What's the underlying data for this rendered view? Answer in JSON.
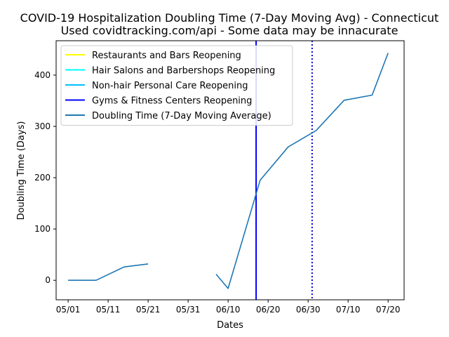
{
  "chart_data": {
    "type": "line",
    "title_line1": "COVID-19 Hospitalization Doubling Time (7-Day Moving Avg) - Connecticut",
    "title_line2": "Used covidtracking.com/api - Some data may be innacurate",
    "xlabel": "Dates",
    "ylabel": "Doubling Time (Days)",
    "x_range": [
      "2020-04-28",
      "2020-07-24"
    ],
    "ylim": [
      -38,
      467
    ],
    "x_ticks": [
      {
        "date": "2020-05-01",
        "label": "05/01"
      },
      {
        "date": "2020-05-11",
        "label": "05/11"
      },
      {
        "date": "2020-05-21",
        "label": "05/21"
      },
      {
        "date": "2020-05-31",
        "label": "05/31"
      },
      {
        "date": "2020-06-10",
        "label": "06/10"
      },
      {
        "date": "2020-06-20",
        "label": "06/20"
      },
      {
        "date": "2020-06-30",
        "label": "06/30"
      },
      {
        "date": "2020-07-10",
        "label": "07/10"
      },
      {
        "date": "2020-07-20",
        "label": "07/20"
      }
    ],
    "y_ticks": [
      0,
      100,
      200,
      300,
      400
    ],
    "grid": false,
    "legend_position": "top-left",
    "reopening_lines": [
      {
        "name": "Restaurants and Bars Reopening",
        "color": "#ffff00",
        "style": "solid",
        "date": null
      },
      {
        "name": "Hair Salons and Barbershops Reopening",
        "color": "#00ffff",
        "style": "solid",
        "date": null
      },
      {
        "name": "Non-hair Personal Care Reopening",
        "color": "#00bfff",
        "style": "solid",
        "date": null
      },
      {
        "name": "Gyms & Fitness Centers Reopening",
        "color": "#0000ff",
        "style": "solid",
        "date": "2020-06-17"
      },
      {
        "name": "",
        "color": "#0000cd",
        "style": "dotted",
        "date": "2020-07-01"
      }
    ],
    "series": [
      {
        "name": "Doubling Time (7-Day Moving Average)",
        "color": "#1f77b4",
        "segments": [
          [
            {
              "x": "2020-05-01",
              "y": 0
            },
            {
              "x": "2020-05-08",
              "y": 0
            },
            {
              "x": "2020-05-15",
              "y": 26
            },
            {
              "x": "2020-05-21",
              "y": 32
            }
          ],
          [
            {
              "x": "2020-06-07",
              "y": 12
            },
            {
              "x": "2020-06-10",
              "y": -16
            },
            {
              "x": "2020-06-18",
              "y": 195
            },
            {
              "x": "2020-06-25",
              "y": 260
            },
            {
              "x": "2020-07-02",
              "y": 292
            },
            {
              "x": "2020-07-09",
              "y": 351
            },
            {
              "x": "2020-07-16",
              "y": 361
            },
            {
              "x": "2020-07-20",
              "y": 443
            }
          ]
        ]
      }
    ]
  }
}
